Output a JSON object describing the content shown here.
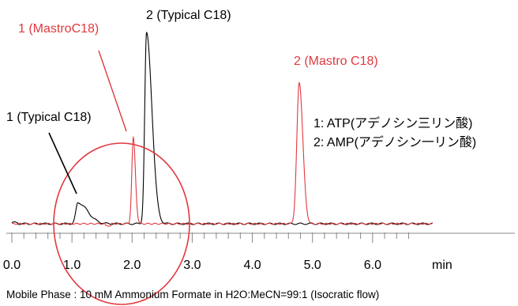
{
  "chart_data": {
    "type": "line",
    "xlabel": "min",
    "xlim": [
      0,
      7.2
    ],
    "x_ticks": [
      0.0,
      1.0,
      2.0,
      3.0,
      4.0,
      5.0,
      6.0
    ],
    "x_tick_labels": [
      "0.0",
      "1.0",
      "2.0",
      "3.0",
      "4.0",
      "5.0",
      "6.0"
    ],
    "series": [
      {
        "name": "Typical C18",
        "color": "#000000",
        "peaks": [
          {
            "label": "1 (Typical C18)",
            "retention_time": 1.1,
            "relative_height": 0.11
          },
          {
            "label": "2 (Typical C18)",
            "retention_time": 2.24,
            "relative_height": 1.0
          }
        ]
      },
      {
        "name": "Mastro C18",
        "color": "#e0393e",
        "peaks": [
          {
            "label": "1 (MastroC18)",
            "retention_time": 2.02,
            "relative_height": 0.45
          },
          {
            "label": "2 (Mastro C18)",
            "retention_time": 4.78,
            "relative_height": 0.74
          }
        ]
      }
    ],
    "annotations": {
      "peak_labels": [
        {
          "text": "1 (Typical C18)",
          "color": "#000000"
        },
        {
          "text": "2 (Typical C18)",
          "color": "#000000"
        },
        {
          "text": "1 (MastroC18)",
          "color": "#e0393e"
        },
        {
          "text": "2 (Mastro C18)",
          "color": "#e0393e"
        }
      ],
      "legend_lines": [
        "1: ATP(アデノシン三リン酸)",
        "2: AMP(アデノシン一リン酸)"
      ],
      "circle_color": "#e0393e"
    },
    "footer": "Mobile Phase : 10 mM Ammonium Formate in H2O:MeCN=99:1 (Isocratic flow)"
  }
}
